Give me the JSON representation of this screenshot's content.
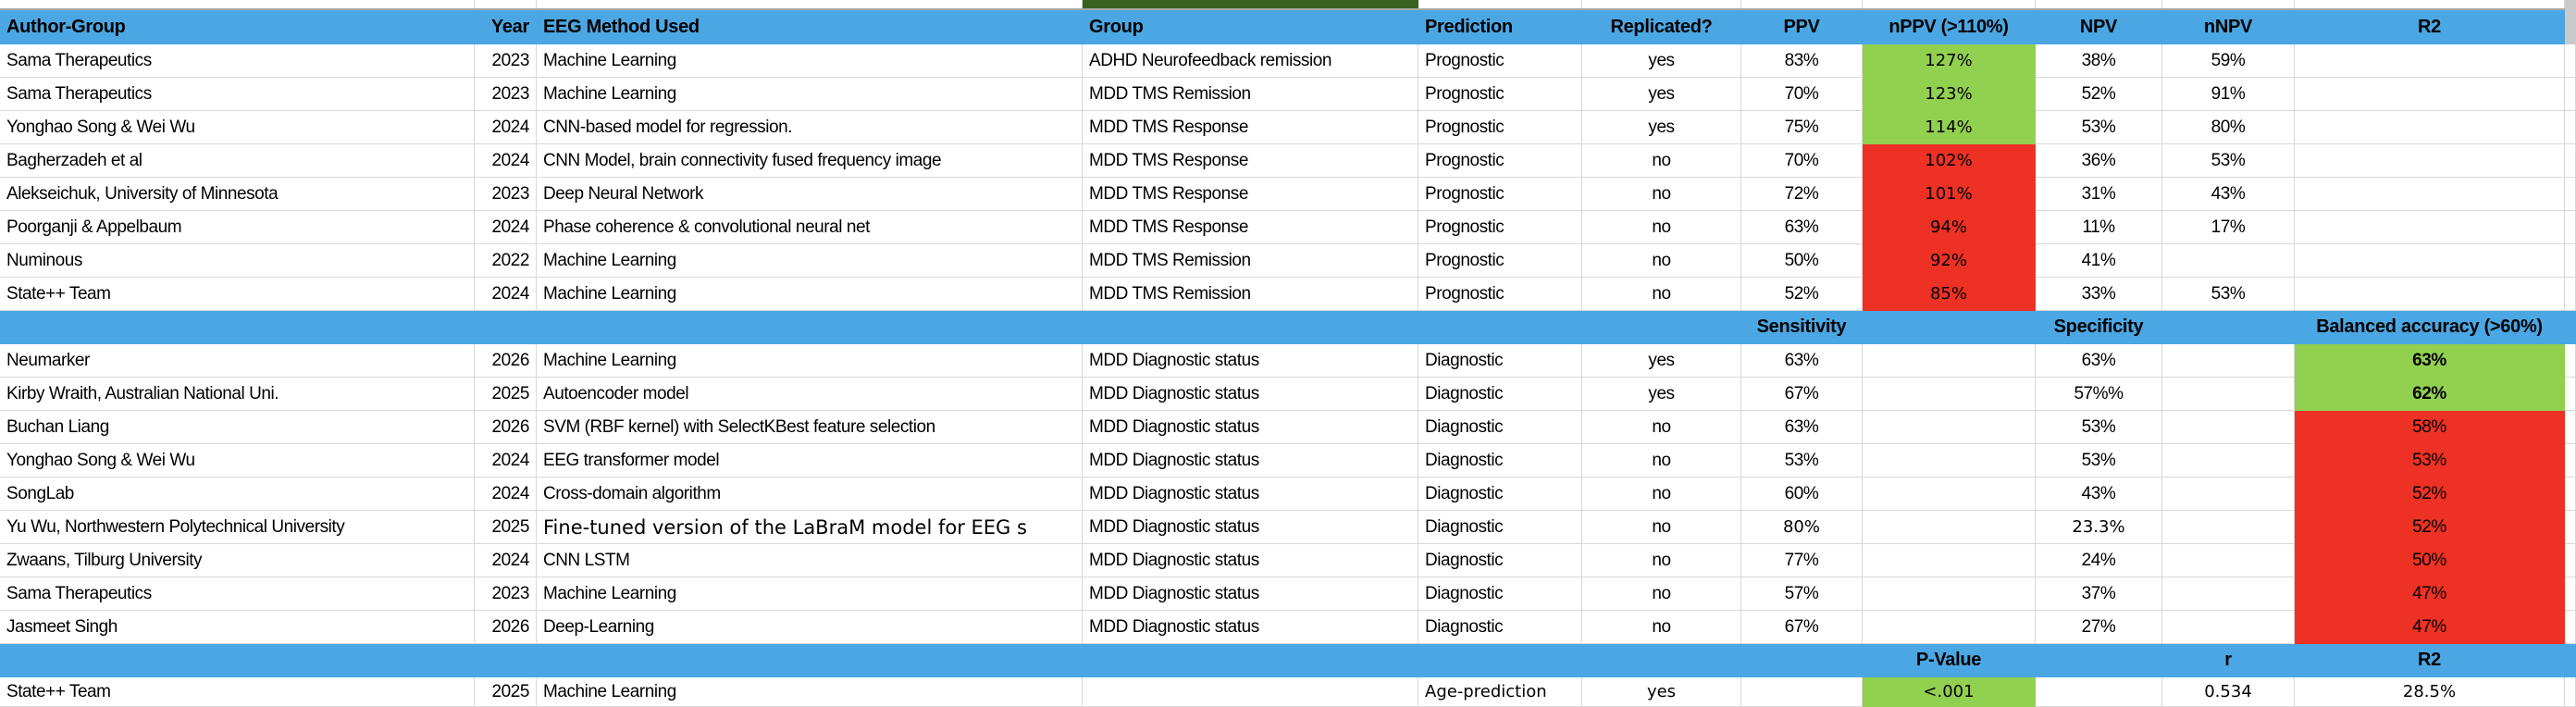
{
  "colors": {
    "header_blue": "#4BA7E3",
    "highlight_green": "#92D050",
    "highlight_red": "#ED3124",
    "dark_green_cell": "#3A621F",
    "gridline": "#D8D8D8"
  },
  "columns": [
    {
      "key": "author",
      "label": "Author-Group"
    },
    {
      "key": "year",
      "label": "Year"
    },
    {
      "key": "method",
      "label": "EEG Method Used"
    },
    {
      "key": "group",
      "label": "Group"
    },
    {
      "key": "prediction",
      "label": "Prediction"
    },
    {
      "key": "replicated",
      "label": "Replicated?"
    },
    {
      "key": "ppv",
      "label": "PPV"
    },
    {
      "key": "nppv",
      "label": "nPPV (>110%)"
    },
    {
      "key": "npv",
      "label": "NPV"
    },
    {
      "key": "nnpv",
      "label": "nNPV"
    },
    {
      "key": "r2",
      "label": "R2"
    }
  ],
  "sections": {
    "prognostic": {
      "rows": [
        {
          "author": "Sama Therapeutics",
          "year": "2023",
          "method": "Machine Learning",
          "group": "ADHD Neurofeedback remission",
          "prediction": "Prognostic",
          "replicated": "yes",
          "ppv": "83%",
          "nppv": "127%",
          "npv": "38%",
          "nnpv": "59%",
          "r2": "",
          "bg": {
            "nppv": "green"
          },
          "wide": [
            "nppv"
          ]
        },
        {
          "author": "Sama Therapeutics",
          "year": "2023",
          "method": "Machine Learning",
          "group": "MDD TMS Remission",
          "prediction": "Prognostic",
          "replicated": "yes",
          "ppv": "70%",
          "nppv": "123%",
          "npv": "52%",
          "nnpv": "91%",
          "r2": "",
          "bg": {
            "nppv": "green"
          },
          "wide": [
            "nppv"
          ]
        },
        {
          "author": "Yonghao Song & Wei Wu",
          "year": "2024",
          "method": "CNN-based model for regression.",
          "group": "MDD TMS Response",
          "prediction": "Prognostic",
          "replicated": "yes",
          "ppv": "75%",
          "nppv": "114%",
          "npv": "53%",
          "nnpv": "80%",
          "r2": "",
          "bg": {
            "nppv": "green"
          },
          "wide": [
            "nppv"
          ]
        },
        {
          "author": "Bagherzadeh et al",
          "year": "2024",
          "method": "CNN Model, brain connectivity fused frequency image",
          "group": "MDD TMS Response",
          "prediction": "Prognostic",
          "replicated": "no",
          "ppv": "70%",
          "nppv": "102%",
          "npv": "36%",
          "nnpv": "53%",
          "r2": "",
          "bg": {
            "nppv": "red"
          },
          "wide": [
            "nppv"
          ]
        },
        {
          "author": "Alekseichuk, University of Minnesota",
          "year": "2023",
          "method": "Deep Neural Network",
          "group": "MDD TMS Response",
          "prediction": "Prognostic",
          "replicated": "no",
          "ppv": "72%",
          "nppv": "101%",
          "npv": "31%",
          "nnpv": "43%",
          "r2": "",
          "bg": {
            "nppv": "red"
          },
          "wide": [
            "nppv"
          ]
        },
        {
          "author": "Poorganji & Appelbaum",
          "year": "2024",
          "method": "Phase coherence & convolutional neural net",
          "group": "MDD TMS Response",
          "prediction": "Prognostic",
          "replicated": "no",
          "ppv": "63%",
          "nppv": "94%",
          "npv": "11%",
          "nnpv": "17%",
          "r2": "",
          "bg": {
            "nppv": "red"
          },
          "wide": [
            "nppv"
          ]
        },
        {
          "author": "Numinous",
          "year": "2022",
          "method": "Machine Learning",
          "group": "MDD TMS Remission",
          "prediction": "Prognostic",
          "replicated": "no",
          "ppv": "50%",
          "nppv": "92%",
          "npv": "41%",
          "nnpv": "",
          "r2": "",
          "bg": {
            "nppv": "red"
          },
          "wide": [
            "nppv"
          ]
        },
        {
          "author": "State++ Team",
          "year": "2024",
          "method": "Machine Learning",
          "group": "MDD TMS Remission",
          "prediction": "Prognostic",
          "replicated": "no",
          "ppv": "52%",
          "nppv": "85%",
          "npv": "33%",
          "nnpv": "53%",
          "r2": "",
          "bg": {
            "nppv": "red"
          },
          "wide": [
            "nppv"
          ]
        }
      ]
    },
    "sep1": {
      "labels": {
        "ppv": "Sensitivity",
        "npv": "Specificity",
        "r2": "Balanced accuracy (>60%)"
      }
    },
    "diagnostic": {
      "rows": [
        {
          "author": "Neumarker",
          "year": "2026",
          "method": "Machine Learning",
          "group": "MDD Diagnostic status",
          "prediction": "Diagnostic",
          "replicated": "yes",
          "ppv": "63%",
          "nppv": "",
          "npv": "63%",
          "nnpv": "",
          "r2": "63%",
          "bg": {
            "r2": "green"
          },
          "bold": [
            "r2"
          ]
        },
        {
          "author": "Kirby Wraith, Australian National Uni.",
          "year": "2025",
          "method": "Autoencoder model",
          "group": "MDD Diagnostic status",
          "prediction": "Diagnostic",
          "replicated": "yes",
          "ppv": "67%",
          "nppv": "",
          "npv": "57%%",
          "nnpv": "",
          "r2": "62%",
          "bg": {
            "r2": "green"
          },
          "bold": [
            "r2"
          ]
        },
        {
          "author": "Buchan Liang",
          "year": "2026",
          "method": "SVM (RBF kernel) with SelectKBest feature selection",
          "group": "MDD Diagnostic status",
          "prediction": "Diagnostic",
          "replicated": "no",
          "ppv": "63%",
          "nppv": "",
          "npv": "53%",
          "nnpv": "",
          "r2": "58%",
          "bg": {
            "r2": "red"
          }
        },
        {
          "author": "Yonghao Song & Wei Wu",
          "year": "2024",
          "method": "EEG transformer model",
          "group": "MDD Diagnostic status",
          "prediction": "Diagnostic",
          "replicated": "no",
          "ppv": "53%",
          "nppv": "",
          "npv": "53%",
          "nnpv": "",
          "r2": "53%",
          "bg": {
            "r2": "red"
          }
        },
        {
          "author": "SongLab",
          "year": "2024",
          "method": "Cross-domain algorithm",
          "group": "MDD Diagnostic status",
          "prediction": "Diagnostic",
          "replicated": "no",
          "ppv": "60%",
          "nppv": "",
          "npv": "43%",
          "nnpv": "",
          "r2": "52%",
          "bg": {
            "r2": "red"
          }
        },
        {
          "author": "Yu Wu, Northwestern Polytechnical University",
          "year": "2025",
          "method": "Fine-tuned version of the LaBraM model for EEG s",
          "group": "MDD Diagnostic status",
          "prediction": "Diagnostic",
          "replicated": "no",
          "ppv": "80%",
          "nppv": "",
          "npv": "23.3%",
          "nnpv": "",
          "r2": "52%",
          "bg": {
            "r2": "red"
          },
          "wide": [
            "ppv",
            "npv"
          ],
          "widebig": [
            "method"
          ]
        },
        {
          "author": "Zwaans, Tilburg University",
          "year": "2024",
          "method": "CNN LSTM",
          "group": "MDD Diagnostic status",
          "prediction": "Diagnostic",
          "replicated": "no",
          "ppv": "77%",
          "nppv": "",
          "npv": "24%",
          "nnpv": "",
          "r2": "50%",
          "bg": {
            "r2": "red"
          }
        },
        {
          "author": "Sama Therapeutics",
          "year": "2023",
          "method": "Machine Learning",
          "group": "MDD Diagnostic status",
          "prediction": "Diagnostic",
          "replicated": "no",
          "ppv": "57%",
          "nppv": "",
          "npv": "37%",
          "nnpv": "",
          "r2": "47%",
          "bg": {
            "r2": "red"
          }
        },
        {
          "author": "Jasmeet Singh",
          "year": "2026",
          "method": "Deep-Learning",
          "group": "MDD Diagnostic status",
          "prediction": "Diagnostic",
          "replicated": "no",
          "ppv": "67%",
          "nppv": "",
          "npv": "27%",
          "nnpv": "",
          "r2": "47%",
          "bg": {
            "r2": "red"
          }
        }
      ]
    },
    "sep2": {
      "labels": {
        "nppv": "P-Value",
        "nnpv": "r",
        "r2": "R2"
      }
    },
    "correlation": {
      "rows": [
        {
          "author": "State++ Team",
          "year": "2025",
          "method": "Machine Learning",
          "group": "",
          "prediction": "Age-prediction",
          "replicated": "yes",
          "ppv": "",
          "nppv": "<.001",
          "npv": "",
          "nnpv": "0.534",
          "r2": "28.5%",
          "bg": {
            "nppv": "green"
          },
          "wide": [
            "prediction",
            "replicated",
            "nppv",
            "nnpv",
            "r2"
          ]
        }
      ]
    }
  }
}
